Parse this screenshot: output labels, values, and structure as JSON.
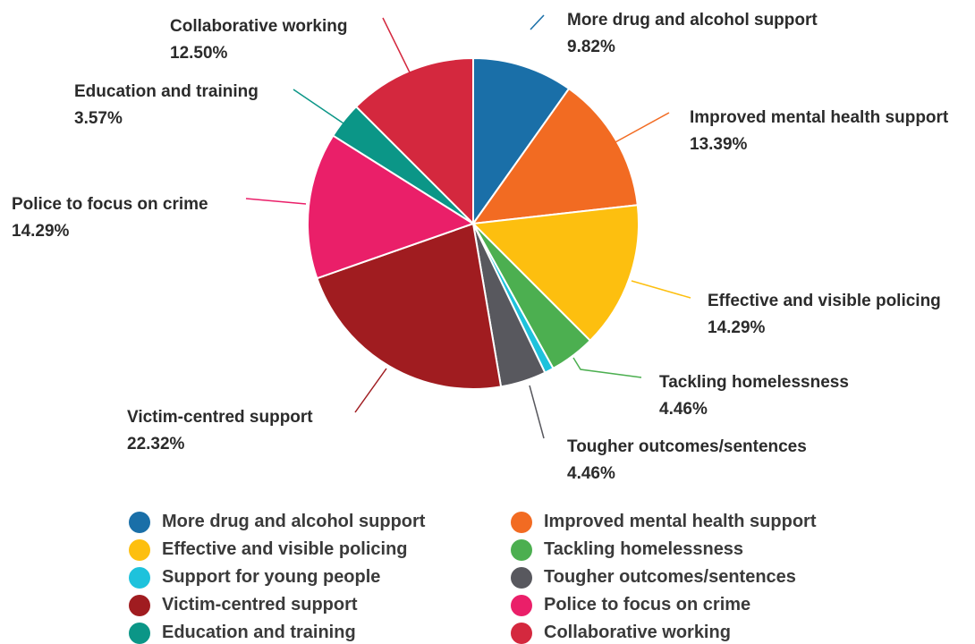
{
  "chart_data": {
    "type": "pie",
    "title": "",
    "slices": [
      {
        "name": "More drug and alcohol support",
        "value": 9.82,
        "label": "9.82%",
        "color": "#1a6fa8"
      },
      {
        "name": "Improved mental health support",
        "value": 13.39,
        "label": "13.39%",
        "color": "#f26b22"
      },
      {
        "name": "Effective and visible policing",
        "value": 14.29,
        "label": "14.29%",
        "color": "#fdbf0f"
      },
      {
        "name": "Tackling homelessness",
        "value": 4.46,
        "label": "4.46%",
        "color": "#4caf50"
      },
      {
        "name": "Support for young people",
        "value": 0.89,
        "label": "",
        "color": "#1ec2dc"
      },
      {
        "name": "Tougher outcomes/sentences",
        "value": 4.46,
        "label": "4.46%",
        "color": "#58585e"
      },
      {
        "name": "Victim-centred support",
        "value": 22.32,
        "label": "22.32%",
        "color": "#a01c20"
      },
      {
        "name": "Police to focus on crime",
        "value": 14.29,
        "label": "14.29%",
        "color": "#ea1f69"
      },
      {
        "name": "Education and training",
        "value": 3.57,
        "label": "3.57%",
        "color": "#0b9687"
      },
      {
        "name": "Collaborative working",
        "value": 12.5,
        "label": "12.50%",
        "color": "#d4283e"
      }
    ],
    "legend": {
      "placement": "bottom",
      "columns": 2,
      "items": [
        "More drug and alcohol support",
        "Improved mental health support",
        "Effective and visible policing",
        "Tackling homelessness",
        "Support for young people",
        "Tougher outcomes/sentences",
        "Victim-centred support",
        "Police to focus on crime",
        "Education and training",
        "Collaborative working"
      ]
    }
  }
}
